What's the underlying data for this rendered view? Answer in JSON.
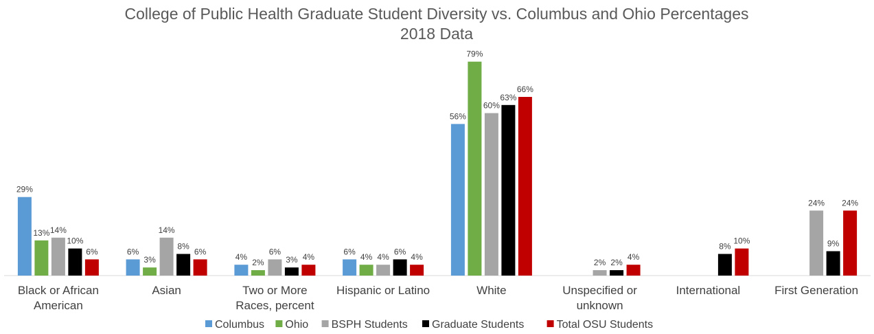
{
  "chart_data": {
    "type": "bar",
    "title": "College of Public Health Graduate Student Diversity vs. Columbus and Ohio Percentages",
    "subtitle": "2018 Data",
    "categories": [
      [
        "Black or African",
        "American"
      ],
      [
        "Asian"
      ],
      [
        "Two or More",
        "Races, percent"
      ],
      [
        "Hispanic or Latino"
      ],
      [
        "White"
      ],
      [
        "Unspecified or",
        "unknown"
      ],
      [
        "International"
      ],
      [
        "First Generation"
      ]
    ],
    "series": [
      {
        "name": "Columbus",
        "color": "#5b9bd5",
        "values": [
          29,
          6,
          4,
          6,
          56,
          null,
          null,
          null
        ]
      },
      {
        "name": "Ohio",
        "color": "#70ad47",
        "values": [
          13,
          3,
          2,
          4,
          79,
          null,
          null,
          null
        ]
      },
      {
        "name": "BSPH Students",
        "color": "#a5a5a5",
        "values": [
          14,
          14,
          6,
          4,
          60,
          2,
          null,
          24
        ]
      },
      {
        "name": "Graduate Students",
        "color": "#000000",
        "values": [
          10,
          8,
          3,
          6,
          63,
          2,
          8,
          9
        ]
      },
      {
        "name": "Total OSU Students",
        "color": "#c00000",
        "values": [
          6,
          6,
          4,
          4,
          66,
          4,
          10,
          24
        ]
      }
    ],
    "value_suffix": "%",
    "ylim": [
      0,
      80
    ],
    "grid": false,
    "legend": "bottom"
  }
}
